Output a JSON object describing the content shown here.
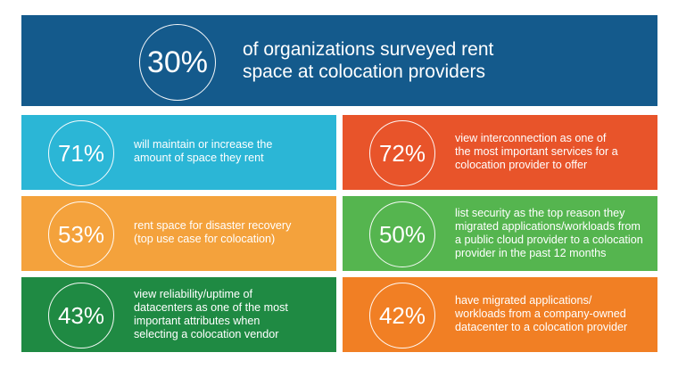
{
  "colors": {
    "header": "#145a8c",
    "cyan": "#2bb6d6",
    "red_orange": "#e8542a",
    "yellow_orange": "#f4a23c",
    "green": "#55b54f",
    "dark_green": "#1f8a43",
    "orange": "#f17f24"
  },
  "header": {
    "percent": "30%",
    "line1": "of organizations surveyed rent",
    "line2": "space at colocation providers"
  },
  "stats": [
    {
      "percent": "71%",
      "lines": [
        "will maintain or increase the",
        "amount of space they rent"
      ]
    },
    {
      "percent": "72%",
      "lines": [
        "view interconnection as one of",
        "the most important services for a",
        "colocation provider to offer"
      ]
    },
    {
      "percent": "53%",
      "lines": [
        "rent space for disaster recovery",
        "(top use case for colocation)"
      ]
    },
    {
      "percent": "50%",
      "lines": [
        "list security as the top reason they",
        "migrated applications/workloads from",
        "a public cloud provider to a colocation",
        "provider in the past 12 months"
      ]
    },
    {
      "percent": "43%",
      "lines": [
        "view reliability/uptime of",
        "datacenters as one of the most",
        "important attributes when",
        "selecting a colocation vendor"
      ]
    },
    {
      "percent": "42%",
      "lines": [
        "have migrated applications/",
        "workloads from a company-owned",
        "datacenter to a colocation provider"
      ]
    }
  ]
}
